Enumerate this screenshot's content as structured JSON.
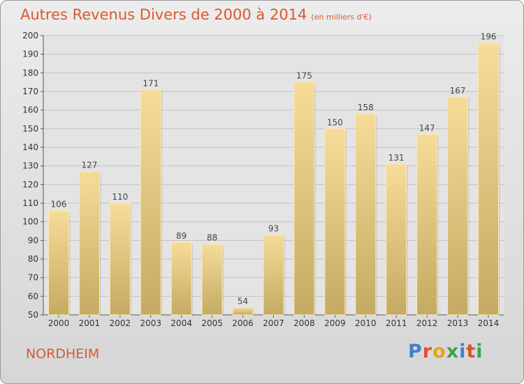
{
  "header": {
    "title": "Autres Revenus Divers de 2000 à 2014",
    "subtitle": "(en milliers d'€)"
  },
  "footer": {
    "commune": "NORDHEIM",
    "logo": "Proxiti"
  },
  "colors": {
    "title": "#d85a2e",
    "bar_top": "#f6dc98",
    "bar_bottom": "#c4aa62",
    "logo_letters": [
      "#3f7fcf",
      "#e0502a",
      "#e8a21a",
      "#3aa34a",
      "#3f7fcf",
      "#e0502a",
      "#3aa34a"
    ]
  },
  "chart_data": {
    "type": "bar",
    "categories": [
      "2000",
      "2001",
      "2002",
      "2003",
      "2004",
      "2005",
      "2006",
      "2007",
      "2008",
      "2009",
      "2010",
      "2011",
      "2012",
      "2013",
      "2014"
    ],
    "values": [
      106,
      127,
      110,
      171,
      89,
      88,
      54,
      93,
      175,
      150,
      158,
      131,
      147,
      167,
      196
    ],
    "ylim": [
      50,
      200
    ],
    "yticks": [
      50,
      60,
      70,
      80,
      90,
      100,
      110,
      120,
      130,
      140,
      150,
      160,
      170,
      180,
      190,
      200
    ],
    "grid": true,
    "data_labels": true
  }
}
